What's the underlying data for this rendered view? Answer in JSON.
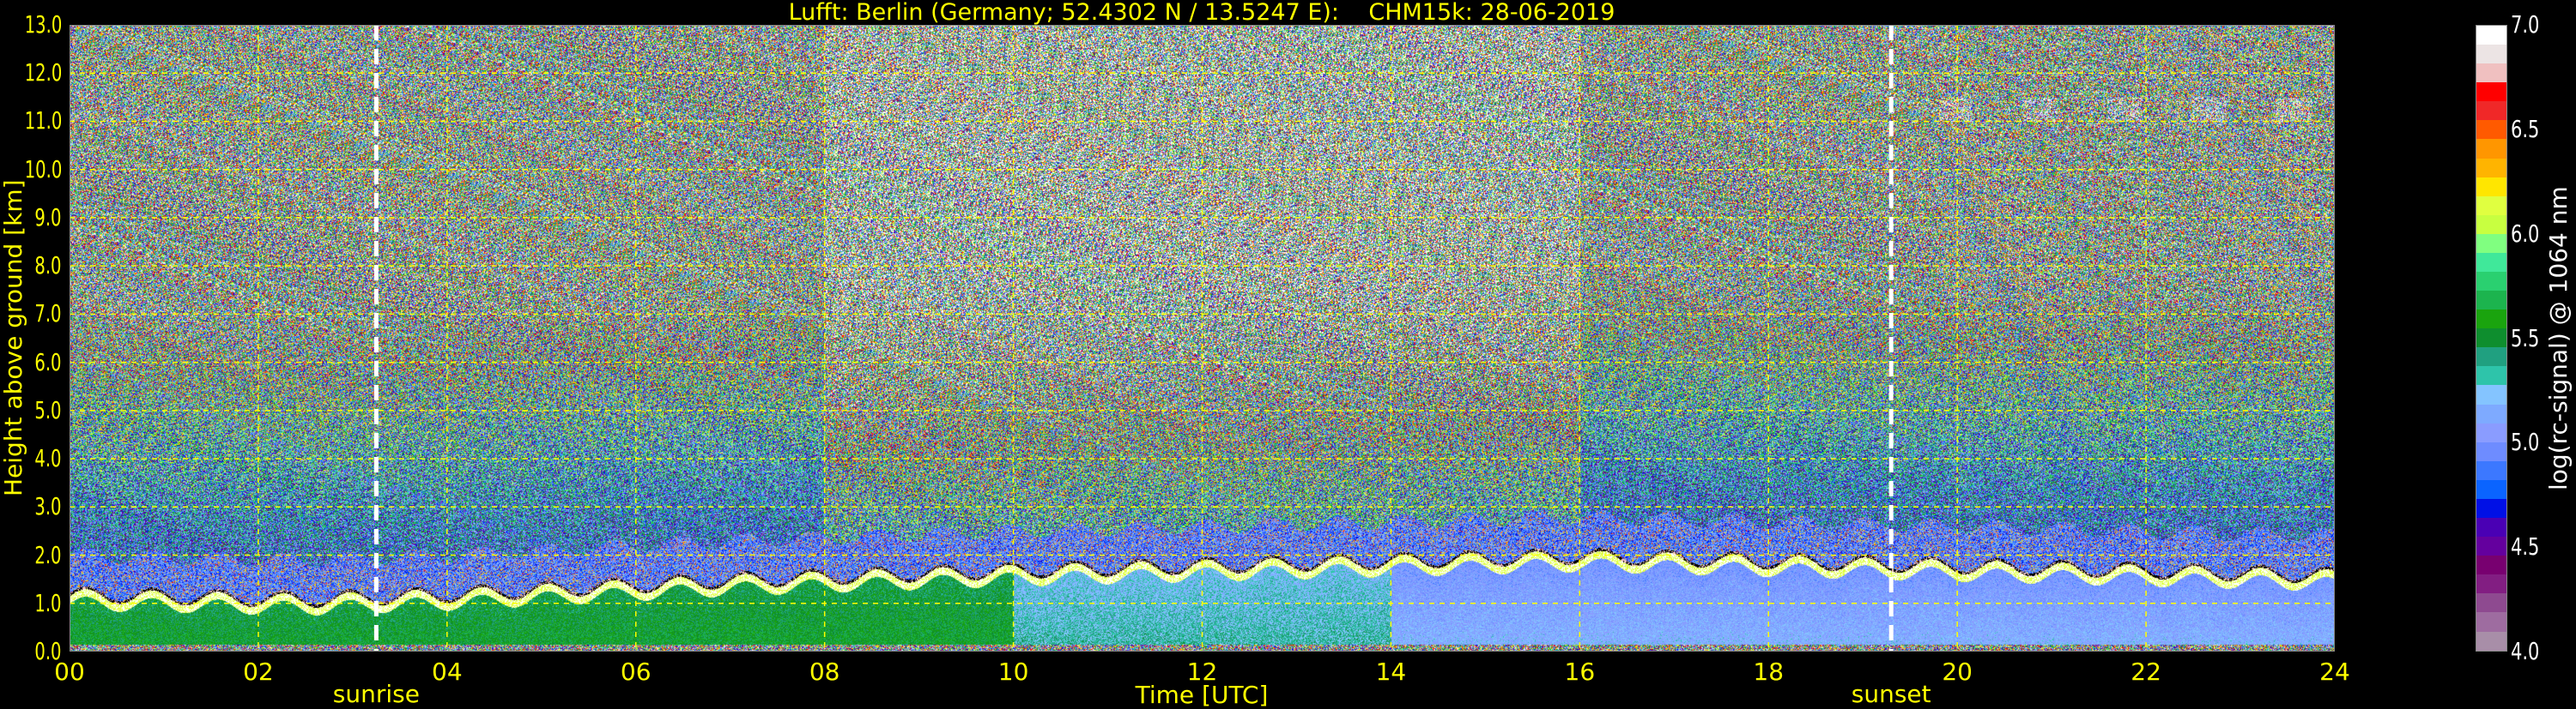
{
  "chart_data": {
    "type": "heatmap",
    "title": "Lufft: Berlin (Germany; 52.4302 N / 13.5247 E):    CHM15k: 28-06-2019",
    "xlabel": "Time [UTC]",
    "ylabel": "Height above ground [km]",
    "xlim": [
      0,
      24
    ],
    "ylim": [
      0,
      13
    ],
    "x_ticks": [
      "00",
      "02",
      "04",
      "06",
      "08",
      "10",
      "12",
      "14",
      "16",
      "18",
      "20",
      "22",
      "24"
    ],
    "y_ticks": [
      "0.0",
      "1.0",
      "2.0",
      "3.0",
      "4.0",
      "5.0",
      "6.0",
      "7.0",
      "8.0",
      "9.0",
      "10.0",
      "11.0",
      "12.0",
      "13.0"
    ],
    "grid": true,
    "grid_color": "#ffff00",
    "colorbar": {
      "label": "log(rc-signal) @ 1064 nm",
      "range": [
        4.0,
        7.0
      ],
      "ticks": [
        "4.0",
        "4.5",
        "5.0",
        "5.5",
        "6.0",
        "6.5",
        "7.0"
      ],
      "colors": [
        "#a88ea8",
        "#9e6ca0",
        "#8e4a90",
        "#821e82",
        "#780070",
        "#64009e",
        "#4a00b4",
        "#0010e6",
        "#0a64ff",
        "#3c78ff",
        "#6e8cff",
        "#8a9cff",
        "#7eaaff",
        "#84c4ff",
        "#2ec4aa",
        "#20a080",
        "#0e8e2e",
        "#1aa40e",
        "#1cb44e",
        "#2ad070",
        "#40e89a",
        "#80ff80",
        "#c8ff40",
        "#e0ff40",
        "#ffe600",
        "#ffb400",
        "#ff9600",
        "#ff5a00",
        "#f02828",
        "#ff0000",
        "#f0c0c0",
        "#ece4e4",
        "#ffffff"
      ]
    },
    "annotations": [
      {
        "label": "sunrise",
        "x": 3.25
      },
      {
        "label": "sunset",
        "x": 19.3
      }
    ],
    "features": {
      "boundary_layer_top_km": [
        [
          0,
          1.1
        ],
        [
          2.5,
          1.0
        ],
        [
          4,
          1.1
        ],
        [
          7,
          1.4
        ],
        [
          8.5,
          1.5
        ],
        [
          10,
          1.6
        ],
        [
          12,
          1.7
        ],
        [
          14,
          1.8
        ],
        [
          16,
          1.9
        ],
        [
          18,
          1.8
        ],
        [
          20,
          1.7
        ],
        [
          24,
          1.5
        ]
      ],
      "cirrus_layer_km": [
        11.0,
        11.5
      ],
      "cirrus_time_utc": [
        19.8,
        23.8
      ]
    }
  }
}
